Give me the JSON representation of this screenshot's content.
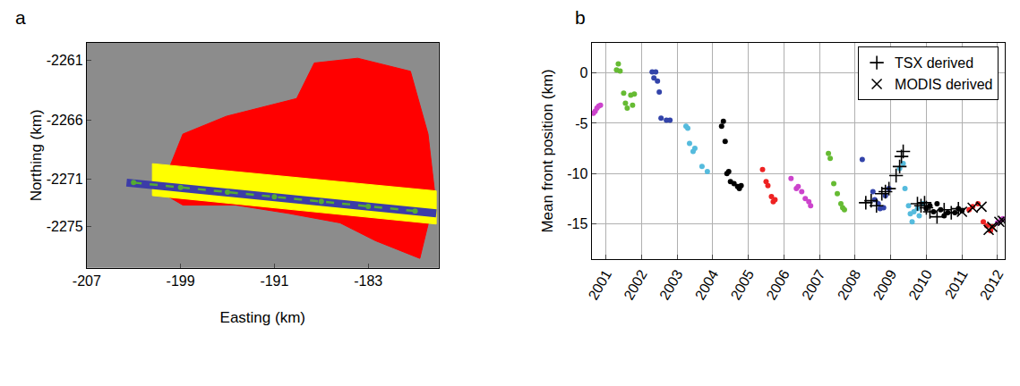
{
  "chart_data": [
    {
      "type": "area",
      "title": "a",
      "xlabel": "Easting (km)",
      "ylabel": "Northing (km)",
      "xlim": [
        -207,
        -177
      ],
      "ylim": [
        -2278.5,
        -2259.5
      ],
      "xticks": [
        -207,
        -199,
        -191,
        -183
      ],
      "yticks": [
        -2261,
        -2266,
        -2271,
        -2275
      ],
      "grid": false,
      "series": [
        {
          "type": "area",
          "color": "#ff0000",
          "x": [
            -200.3,
            -198.8,
            -195.1,
            -189.1,
            -187.6,
            -183.9,
            -179.4,
            -177.9,
            -177.3,
            -178.6,
            -182.4,
            -185.4,
            -189.8,
            -194.3,
            -198.8,
            -200.7,
            -200.3
          ],
          "y": [
            -2270.9,
            -2267.2,
            -2265.7,
            -2264.2,
            -2261.2,
            -2260.8,
            -2261.9,
            -2267.2,
            -2272.4,
            -2277.7,
            -2276.2,
            -2274.7,
            -2273.9,
            -2273.2,
            -2273.2,
            -2272.1,
            -2270.9
          ]
        },
        {
          "type": "area",
          "color": "#ffff00",
          "x": [
            -201.4,
            -177.2,
            -177.2,
            -201.4,
            -201.4
          ],
          "y": [
            -2269.7,
            -2272.0,
            -2274.8,
            -2272.4,
            -2269.7
          ]
        },
        {
          "type": "line",
          "color": "#3c3ca8",
          "line_style": "solid",
          "x": [
            -203.6,
            -177.2
          ],
          "y": [
            -2271.3,
            -2273.9
          ]
        },
        {
          "type": "line",
          "color": "#55aa33",
          "line_style": "dashed",
          "marker": "circle",
          "x": [
            -203.0,
            -199.0,
            -195.0,
            -191.0,
            -187.0,
            -183.0,
            -179.0
          ],
          "y": [
            -2271.3,
            -2271.7,
            -2272.1,
            -2272.5,
            -2272.9,
            -2273.3,
            -2273.7
          ]
        }
      ]
    },
    {
      "type": "scatter",
      "title": "b",
      "ylabel": "Mean front position (km)",
      "xlim": [
        2000.6,
        2012.2
      ],
      "ylim": [
        -18.5,
        3
      ],
      "xticks": [
        2001,
        2002,
        2003,
        2004,
        2005,
        2006,
        2007,
        2008,
        2009,
        2010,
        2011,
        2012
      ],
      "yticks": [
        0,
        -5,
        -10,
        -15
      ],
      "grid": true,
      "legend": "upper right",
      "series": [
        {
          "color": "#cc44cc",
          "marker": "circle",
          "x": [
            2000.65,
            2000.7,
            2000.75,
            2000.8,
            2000.85
          ],
          "y": [
            -4.0,
            -3.8,
            -3.5,
            -3.3,
            -3.2
          ]
        },
        {
          "color": "#66bb33",
          "marker": "circle",
          "x": [
            2001.3,
            2001.35,
            2001.4,
            2001.5,
            2001.55,
            2001.6,
            2001.7,
            2001.75,
            2001.8
          ],
          "y": [
            0.3,
            0.9,
            0.2,
            -2.0,
            -3.0,
            -3.5,
            -2.2,
            -3.2,
            -2.1
          ]
        },
        {
          "color": "#3344aa",
          "marker": "circle",
          "x": [
            2002.3,
            2002.35,
            2002.4,
            2002.45,
            2002.5,
            2002.55,
            2002.7,
            2002.8
          ],
          "y": [
            0.1,
            -0.5,
            0.1,
            -0.8,
            -1.9,
            -4.5,
            -4.7,
            -4.7
          ]
        },
        {
          "color": "#55bbdd",
          "marker": "circle",
          "x": [
            2003.25,
            2003.3,
            2003.35,
            2003.45,
            2003.5,
            2003.7,
            2003.85
          ],
          "y": [
            -5.3,
            -5.5,
            -7.0,
            -7.8,
            -7.5,
            -9.3,
            -9.8
          ]
        },
        {
          "color": "#000000",
          "marker": "circle",
          "x": [
            2004.25,
            2004.3,
            2004.35,
            2004.4,
            2004.45,
            2004.5,
            2004.6,
            2004.7,
            2004.75,
            2004.8
          ],
          "y": [
            -5.3,
            -4.8,
            -6.8,
            -10.0,
            -9.8,
            -10.8,
            -11.0,
            -11.3,
            -11.5,
            -11.2
          ]
        },
        {
          "color": "#ee2222",
          "marker": "circle",
          "x": [
            2005.4,
            2005.5,
            2005.55,
            2005.65,
            2005.7,
            2005.75
          ],
          "y": [
            -9.6,
            -10.8,
            -11.2,
            -12.3,
            -12.8,
            -12.6
          ]
        },
        {
          "color": "#cc44cc",
          "marker": "circle",
          "x": [
            2006.2,
            2006.35,
            2006.4,
            2006.5,
            2006.6,
            2006.7,
            2006.75
          ],
          "y": [
            -10.5,
            -11.5,
            -11.3,
            -11.8,
            -12.5,
            -12.8,
            -13.2
          ]
        },
        {
          "color": "#66bb33",
          "marker": "circle",
          "x": [
            2007.25,
            2007.3,
            2007.4,
            2007.5,
            2007.6,
            2007.65,
            2007.7
          ],
          "y": [
            -8.0,
            -8.5,
            -11.0,
            -12.0,
            -13.0,
            -13.4,
            -13.6
          ]
        },
        {
          "color": "#3344aa",
          "marker": "circle",
          "x": [
            2008.2,
            2008.5,
            2008.55,
            2008.65,
            2008.7,
            2008.8,
            2008.85,
            2008.95
          ],
          "y": [
            -8.6,
            -11.8,
            -12.6,
            -13.0,
            -13.5,
            -13.4,
            -12.2,
            -11.5
          ]
        },
        {
          "color": "#55bbdd",
          "marker": "circle",
          "x": [
            2009.25,
            2009.35,
            2009.4,
            2009.5,
            2009.55,
            2009.6,
            2009.65,
            2009.75,
            2009.8,
            2009.9
          ],
          "y": [
            -9.5,
            -9.0,
            -11.5,
            -13.2,
            -14.0,
            -14.8,
            -13.8,
            -13.5,
            -14.2,
            -13.0
          ]
        },
        {
          "color": "#000000",
          "marker": "circle",
          "x": [
            2010.0,
            2010.1,
            2010.2,
            2010.3,
            2010.4,
            2010.5,
            2010.6,
            2010.8,
            2010.9,
            2011.0
          ],
          "y": [
            -13.5,
            -13.2,
            -13.8,
            -13.0,
            -13.6,
            -14.2,
            -13.9,
            -13.9,
            -13.5,
            -13.7
          ]
        },
        {
          "color": "#ee2222",
          "marker": "circle",
          "x": [
            2011.2,
            2011.3,
            2011.45,
            2011.6,
            2011.7,
            2011.8,
            2011.85
          ],
          "y": [
            -13.6,
            -13.3,
            -13.0,
            -14.8,
            -15.2,
            -15.7,
            -15.3
          ]
        },
        {
          "color": "#cc44cc",
          "marker": "circle",
          "x": [
            2012.0,
            2012.1,
            2012.15
          ],
          "y": [
            -14.9,
            -14.6,
            -14.5
          ]
        },
        {
          "name": "TSX derived",
          "color": "#000000",
          "marker": "cross",
          "x": [
            2008.3,
            2008.45,
            2008.6,
            2008.75,
            2008.85,
            2008.95,
            2009.15,
            2009.25,
            2009.3,
            2009.35,
            2009.75,
            2009.85,
            2009.95,
            2010.0,
            2010.1,
            2010.3,
            2010.5,
            2010.7,
            2010.9
          ],
          "y": [
            -12.9,
            -12.7,
            -13.2,
            -12.0,
            -11.8,
            -11.5,
            -10.2,
            -9.3,
            -8.3,
            -7.8,
            -13.0,
            -13.2,
            -12.9,
            -13.4,
            -13.8,
            -14.3,
            -13.6,
            -13.9,
            -13.5
          ]
        },
        {
          "name": "MODIS derived",
          "color": "#000000",
          "marker": "x",
          "x": [
            2011.0,
            2011.3,
            2011.55,
            2011.75,
            2011.85,
            2012.05,
            2012.15
          ],
          "y": [
            -13.8,
            -13.4,
            -13.3,
            -15.6,
            -15.3,
            -14.8,
            -14.7
          ]
        }
      ]
    }
  ]
}
